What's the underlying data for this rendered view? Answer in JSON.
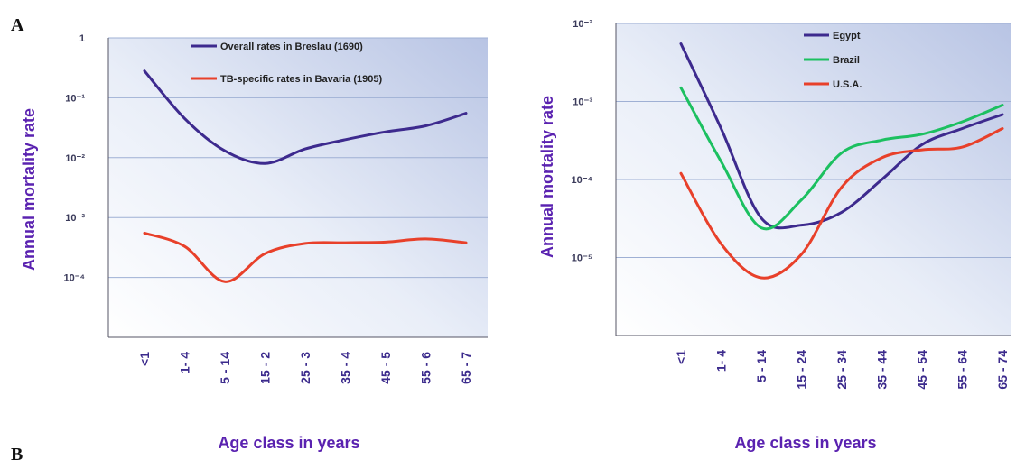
{
  "panels": {
    "left_letter": "A",
    "bottom_letter": "B"
  },
  "colors": {
    "purple": "#3d2a8e",
    "red": "#e8402a",
    "green": "#1cc060",
    "label": "#5a22b0"
  },
  "chart_data": [
    {
      "type": "line",
      "title": "",
      "xlabel": "Age class in  years",
      "ylabel": "Annual mortality rate",
      "scale": "log",
      "categories": [
        "<1",
        "1- 4",
        "5 - 14",
        "15 - 2",
        "25 - 3",
        "35 - 4",
        "45 - 5",
        "55 - 6",
        "65 - 7"
      ],
      "y_ticks": [
        {
          "label": "1",
          "value": 1
        },
        {
          "label": "10⁻¹",
          "value": 0.1
        },
        {
          "label": "10⁻²",
          "value": 0.01
        },
        {
          "label": "10⁻³",
          "value": 0.001
        },
        {
          "label": "10⁻⁴",
          "value": 0.0001
        }
      ],
      "ylim": [
        1e-05,
        1
      ],
      "grid": true,
      "legend_position": "top",
      "series": [
        {
          "name": "Overall rates in Breslau (1690)",
          "color": "#3d2a8e",
          "values": [
            0.28,
            0.045,
            0.013,
            0.008,
            0.014,
            0.02,
            0.027,
            0.034,
            0.055
          ]
        },
        {
          "name": "TB-specific rates in Bavaria (1905)",
          "color": "#e8402a",
          "values": [
            0.00055,
            0.00033,
            8.5e-05,
            0.00025,
            0.00037,
            0.00038,
            0.00039,
            0.00044,
            0.00038
          ]
        }
      ]
    },
    {
      "type": "line",
      "title": "",
      "xlabel": "Age class in  years",
      "ylabel": "Annual mortality rate",
      "scale": "log",
      "categories": [
        "<1",
        "1- 4",
        "5 - 14",
        "15 - 24",
        "25 - 34",
        "35 - 44",
        "45 - 54",
        "55 - 64",
        "65 - 74"
      ],
      "y_ticks": [
        {
          "label": "10⁻²",
          "value": 0.01
        },
        {
          "label": "10⁻³",
          "value": 0.001
        },
        {
          "label": "10⁻⁴",
          "value": 0.0001
        },
        {
          "label": "10⁻⁵",
          "value": 1e-05
        }
      ],
      "ylim": [
        1e-06,
        0.01
      ],
      "grid": true,
      "legend_position": "top",
      "series": [
        {
          "name": "Egypt",
          "color": "#3d2a8e",
          "values": [
            0.0055,
            0.00045,
            3.2e-05,
            2.6e-05,
            3.8e-05,
            0.0001,
            0.00028,
            0.00045,
            0.00068
          ]
        },
        {
          "name": "Brazil",
          "color": "#1cc060",
          "values": [
            0.0015,
            0.00017,
            2.4e-05,
            5.5e-05,
            0.00022,
            0.00032,
            0.00038,
            0.00055,
            0.0009
          ]
        },
        {
          "name": "U.S.A.",
          "color": "#e8402a",
          "values": [
            0.00012,
            1.5e-05,
            5.5e-06,
            1.1e-05,
            8e-05,
            0.00019,
            0.00024,
            0.00026,
            0.00045
          ]
        }
      ]
    }
  ]
}
